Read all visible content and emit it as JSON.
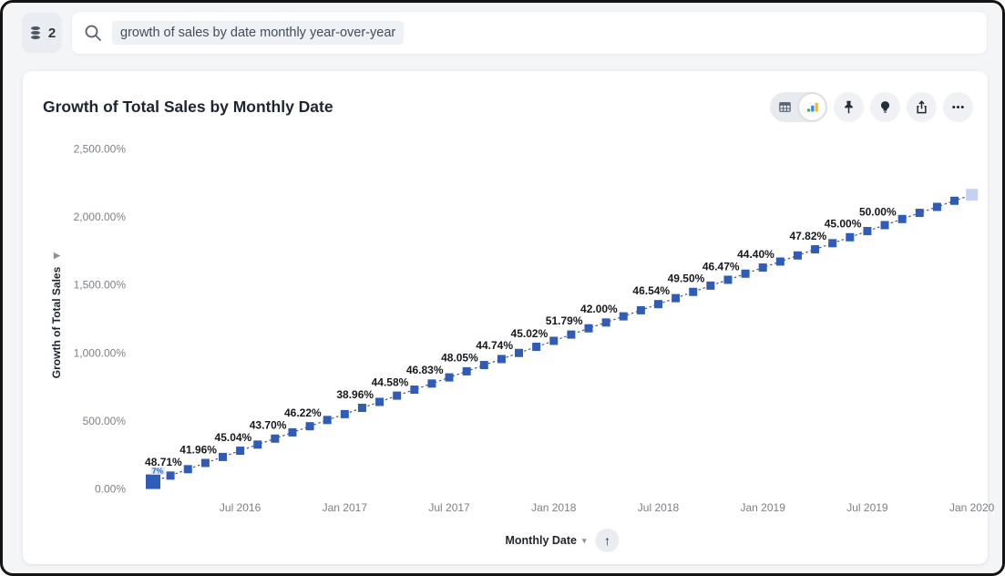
{
  "topbar": {
    "datasource_count": "2",
    "search_query": "growth of sales by date monthly year-over-year"
  },
  "card": {
    "title": "Growth of Total Sales by Monthly Date"
  },
  "icons": {
    "datasource": "database-icon",
    "search": "magnifier-icon",
    "view_table": "table-icon",
    "view_chart": "chart-icon",
    "pin": "pushpin-icon",
    "insights": "lightbulb-icon",
    "share": "share-upload-icon",
    "more": "ellipsis-icon",
    "x_axis_caret": "▾",
    "x_axis_sort": "↑",
    "y_axis_caret": "▶"
  },
  "chart_data": {
    "type": "line",
    "title": "Growth of Total Sales by Monthly Date",
    "xlabel": "Monthly Date",
    "ylabel": "Growth of Total Sales",
    "line_style": "dashed",
    "marker": "square",
    "legend": "none",
    "grid": "off",
    "ylim": [
      0,
      2500
    ],
    "colors": {
      "marker": "#2e5cb8",
      "marker_last": "#c3d2ee",
      "line": "#4c5157",
      "label": "#15181d",
      "tick": "#7b8187",
      "partial_label": "#2e5cb8",
      "partial_label_bg": "#dbe6f7"
    },
    "y_axis": {
      "ticks": [
        {
          "label": "2,500.00%",
          "value": 2500
        },
        {
          "label": "2,000.00%",
          "value": 2000
        },
        {
          "label": "1,500.00%",
          "value": 1500
        },
        {
          "label": "1,000.00%",
          "value": 1000
        },
        {
          "label": "500.00%",
          "value": 500
        },
        {
          "label": "0.00%",
          "value": 0
        }
      ]
    },
    "x_axis": {
      "ticks": [
        {
          "label": "Jul 2016",
          "index": 5
        },
        {
          "label": "Jan 2017",
          "index": 11
        },
        {
          "label": "Jul 2017",
          "index": 17
        },
        {
          "label": "Jan 2018",
          "index": 23
        },
        {
          "label": "Jul 2018",
          "index": 29
        },
        {
          "label": "Jan 2019",
          "index": 35
        },
        {
          "label": "Jul 2019",
          "index": 41
        },
        {
          "label": "Jan 2020",
          "index": 47
        }
      ]
    },
    "points": [
      {
        "date": "Feb 2016",
        "value": 50
      },
      {
        "date": "Mar 2016",
        "value": 95,
        "small_label": "7%"
      },
      {
        "date": "Apr 2016",
        "value": 142,
        "label": "48.71%"
      },
      {
        "date": "May 2016",
        "value": 188
      },
      {
        "date": "Jun 2016",
        "value": 232,
        "label": "41.96%"
      },
      {
        "date": "Jul 2016",
        "value": 278
      },
      {
        "date": "Aug 2016",
        "value": 323,
        "label": "45.04%"
      },
      {
        "date": "Sep 2016",
        "value": 367
      },
      {
        "date": "Oct 2016",
        "value": 413,
        "label": "43.70%"
      },
      {
        "date": "Nov 2016",
        "value": 458
      },
      {
        "date": "Dec 2016",
        "value": 504,
        "label": "46.22%"
      },
      {
        "date": "Jan 2017",
        "value": 547
      },
      {
        "date": "Feb 2017",
        "value": 593
      },
      {
        "date": "Mar 2017",
        "value": 637,
        "label": "38.96%"
      },
      {
        "date": "Apr 2017",
        "value": 683
      },
      {
        "date": "May 2017",
        "value": 727,
        "label": "44.58%"
      },
      {
        "date": "Jun 2017",
        "value": 772
      },
      {
        "date": "Jul 2017",
        "value": 817,
        "label": "46.83%"
      },
      {
        "date": "Aug 2017",
        "value": 862
      },
      {
        "date": "Sep 2017",
        "value": 908,
        "label": "48.05%"
      },
      {
        "date": "Oct 2017",
        "value": 952
      },
      {
        "date": "Nov 2017",
        "value": 997,
        "label": "44.74%"
      },
      {
        "date": "Dec 2017",
        "value": 1042
      },
      {
        "date": "Jan 2018",
        "value": 1086,
        "label": "45.02%"
      },
      {
        "date": "Feb 2018",
        "value": 1132
      },
      {
        "date": "Mar 2018",
        "value": 1178,
        "label": "51.79%"
      },
      {
        "date": "Apr 2018",
        "value": 1221
      },
      {
        "date": "May 2018",
        "value": 1266,
        "label": "42.00%"
      },
      {
        "date": "Jun 2018",
        "value": 1311
      },
      {
        "date": "Jul 2018",
        "value": 1356
      },
      {
        "date": "Aug 2018",
        "value": 1400,
        "label": "46.54%"
      },
      {
        "date": "Sep 2018",
        "value": 1446
      },
      {
        "date": "Oct 2018",
        "value": 1492,
        "label": "49.50%"
      },
      {
        "date": "Nov 2018",
        "value": 1535
      },
      {
        "date": "Dec 2018",
        "value": 1580,
        "label": "46.47%"
      },
      {
        "date": "Jan 2019",
        "value": 1625
      },
      {
        "date": "Feb 2019",
        "value": 1669,
        "label": "44.40%"
      },
      {
        "date": "Mar 2019",
        "value": 1714
      },
      {
        "date": "Apr 2019",
        "value": 1759
      },
      {
        "date": "May 2019",
        "value": 1804,
        "label": "47.82%"
      },
      {
        "date": "Jun 2019",
        "value": 1848
      },
      {
        "date": "Jul 2019",
        "value": 1893,
        "label": "45.00%"
      },
      {
        "date": "Aug 2019",
        "value": 1937
      },
      {
        "date": "Sep 2019",
        "value": 1982,
        "label": "50.00%"
      },
      {
        "date": "Oct 2019",
        "value": 2027
      },
      {
        "date": "Nov 2019",
        "value": 2071
      },
      {
        "date": "Dec 2019",
        "value": 2116
      },
      {
        "date": "Jan 2020",
        "value": 2160
      }
    ]
  }
}
